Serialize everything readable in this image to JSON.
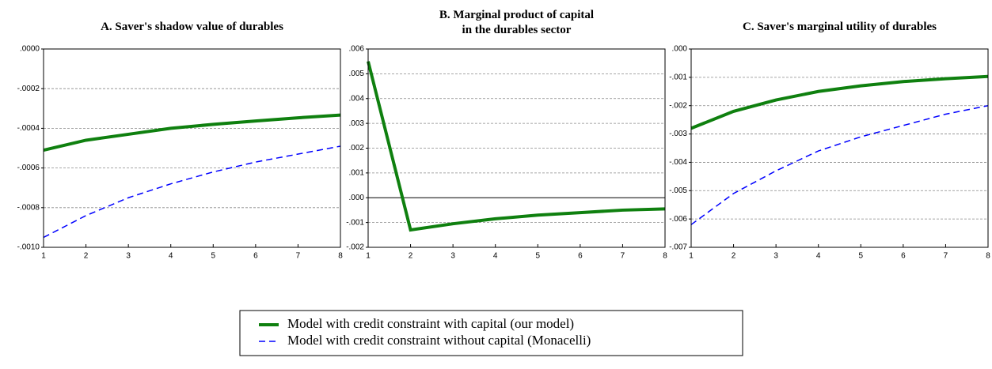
{
  "chart_data": [
    {
      "type": "line",
      "title": "A. Saver's shadow value of durables",
      "x": [
        1,
        2,
        3,
        4,
        5,
        6,
        7,
        8
      ],
      "xlim": [
        1,
        8
      ],
      "xticks": [
        1,
        2,
        3,
        4,
        5,
        6,
        7,
        8
      ],
      "ylim": [
        -0.001,
        0
      ],
      "yticks": [
        {
          "value": 0,
          "label": ".0000"
        },
        {
          "value": -0.0002,
          "label": "-.0002"
        },
        {
          "value": -0.0004,
          "label": "-.0004"
        },
        {
          "value": -0.0006,
          "label": "-.0006"
        },
        {
          "value": -0.0008,
          "label": "-.0008"
        },
        {
          "value": -0.001,
          "label": "-.0010"
        }
      ],
      "grid": true,
      "legend": "bottom",
      "series": [
        {
          "name": "Model with credit constraint with capital (our model)",
          "color": "#0f800f",
          "line_style": "solid",
          "values": [
            -0.00051,
            -0.00046,
            -0.00043,
            -0.0004,
            -0.00038,
            -0.000363,
            -0.000347,
            -0.000333
          ]
        },
        {
          "name": "Model with credit constraint without capital (Monacelli)",
          "color": "#0000ff",
          "line_style": "dashed",
          "values": [
            -0.00095,
            -0.00084,
            -0.00075,
            -0.00068,
            -0.00062,
            -0.00057,
            -0.00053,
            -0.00049
          ]
        }
      ]
    },
    {
      "type": "line",
      "title": [
        "B. Marginal product of capital",
        "in the durables sector"
      ],
      "x": [
        1,
        2,
        3,
        4,
        5,
        6,
        7,
        8
      ],
      "xlim": [
        1,
        8
      ],
      "xticks": [
        1,
        2,
        3,
        4,
        5,
        6,
        7,
        8
      ],
      "ylim": [
        -0.002,
        0.006
      ],
      "yticks": [
        {
          "value": 0.006,
          "label": ".006"
        },
        {
          "value": 0.005,
          "label": ".005"
        },
        {
          "value": 0.004,
          "label": ".004"
        },
        {
          "value": 0.003,
          "label": ".003"
        },
        {
          "value": 0.002,
          "label": ".002"
        },
        {
          "value": 0.001,
          "label": ".001"
        },
        {
          "value": 0,
          "label": ".000"
        },
        {
          "value": -0.001,
          "label": "-.001"
        },
        {
          "value": -0.002,
          "label": "-.002"
        }
      ],
      "grid": true,
      "zero_line": true,
      "series": [
        {
          "name": "Model with credit constraint with capital (our model)",
          "color": "#0f800f",
          "line_style": "solid",
          "values": [
            0.0055,
            -0.0013,
            -0.00105,
            -0.00085,
            -0.0007,
            -0.0006,
            -0.0005,
            -0.00045
          ]
        }
      ]
    },
    {
      "type": "line",
      "title": "C. Saver's marginal utility of durables",
      "x": [
        1,
        2,
        3,
        4,
        5,
        6,
        7,
        8
      ],
      "xlim": [
        1,
        8
      ],
      "xticks": [
        1,
        2,
        3,
        4,
        5,
        6,
        7,
        8
      ],
      "ylim": [
        -0.007,
        0
      ],
      "yticks": [
        {
          "value": 0,
          "label": ".000"
        },
        {
          "value": -0.001,
          "label": "-.001"
        },
        {
          "value": -0.002,
          "label": "-.002"
        },
        {
          "value": -0.003,
          "label": "-.003"
        },
        {
          "value": -0.004,
          "label": "-.004"
        },
        {
          "value": -0.005,
          "label": "-.005"
        },
        {
          "value": -0.006,
          "label": "-.006"
        },
        {
          "value": -0.007,
          "label": "-.007"
        }
      ],
      "grid": true,
      "series": [
        {
          "name": "Model with credit constraint with capital (our model)",
          "color": "#0f800f",
          "line_style": "solid",
          "values": [
            -0.0028,
            -0.0022,
            -0.0018,
            -0.0015,
            -0.0013,
            -0.00115,
            -0.00105,
            -0.00097
          ]
        },
        {
          "name": "Model with credit constraint without capital (Monacelli)",
          "color": "#0000ff",
          "line_style": "dashed",
          "values": [
            -0.0062,
            -0.0051,
            -0.0043,
            -0.0036,
            -0.0031,
            -0.0027,
            -0.0023,
            -0.002
          ]
        }
      ]
    }
  ]
}
